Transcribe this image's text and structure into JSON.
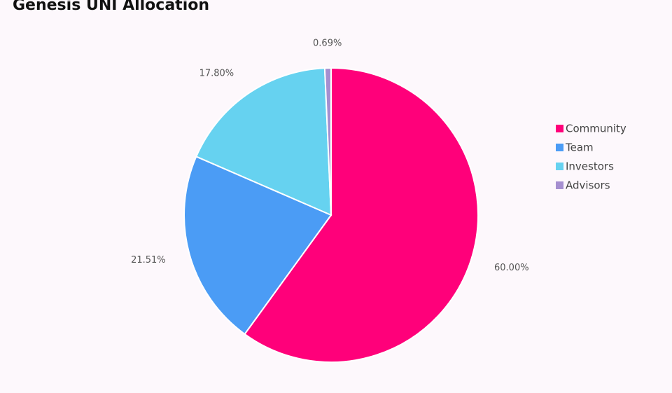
{
  "chart_data": {
    "type": "pie",
    "title": "Genesis UNI Allocation",
    "categories": [
      "Community",
      "Team",
      "Investors",
      "Advisors"
    ],
    "values": [
      60,
      21.51,
      17.8,
      0.69
    ],
    "value_labels": [
      "60.00%",
      "21.51%",
      "17.80%",
      "0.69%"
    ],
    "colors": [
      "#ff007a",
      "#4b9cf5",
      "#66d2f0",
      "#a58fd0"
    ],
    "legend": "right"
  }
}
